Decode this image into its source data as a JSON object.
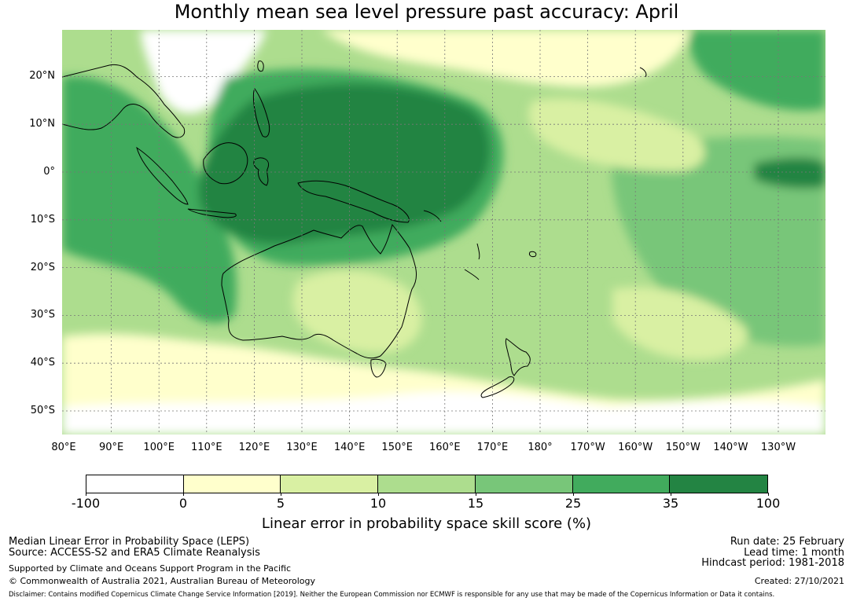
{
  "title": "Monthly mean sea level pressure past accuracy: April",
  "map": {
    "lat_labels": [
      "20°N",
      "10°N",
      "0°",
      "10°S",
      "20°S",
      "30°S",
      "40°S",
      "50°S"
    ],
    "lon_labels": [
      "80°E",
      "90°E",
      "100°E",
      "110°E",
      "120°E",
      "130°E",
      "140°E",
      "150°E",
      "160°E",
      "170°E",
      "180°",
      "170°W",
      "160°W",
      "150°W",
      "140°W",
      "130°W"
    ],
    "lon_range": [
      80,
      240
    ],
    "lat_range": [
      -55,
      30
    ],
    "grid": true
  },
  "colorbar": {
    "ticks": [
      "-100",
      "0",
      "5",
      "10",
      "15",
      "25",
      "35",
      "100"
    ],
    "colors": [
      "#ffffff",
      "#ffffcc",
      "#d9f0a3",
      "#addd8e",
      "#78c679",
      "#41ab5d",
      "#238443"
    ],
    "label": "Linear error in probability space skill score (%)"
  },
  "footer": {
    "line1": "Median Linear Error in Probability Space (LEPS)",
    "line2": "Source: ACCESS-S2 and ERA5 Climate Reanalysis",
    "line3": "Supported by Climate and Oceans Support Program in the Pacific",
    "line4": "© Commonwealth of Australia 2021, Australian Bureau of Meteorology",
    "run_date": "Run date: 25 February",
    "lead_time": "Lead time: 1 month",
    "hindcast": "Hindcast period: 1981-2018",
    "created": "Created: 27/10/2021",
    "disclaimer": "Disclaimer: Contains modified Copernicus Climate Change Service Information [2019]. Neither the European Commission nor ECMWF is responsible for any use that may be made of the Copernicus Information or Data it contains."
  }
}
